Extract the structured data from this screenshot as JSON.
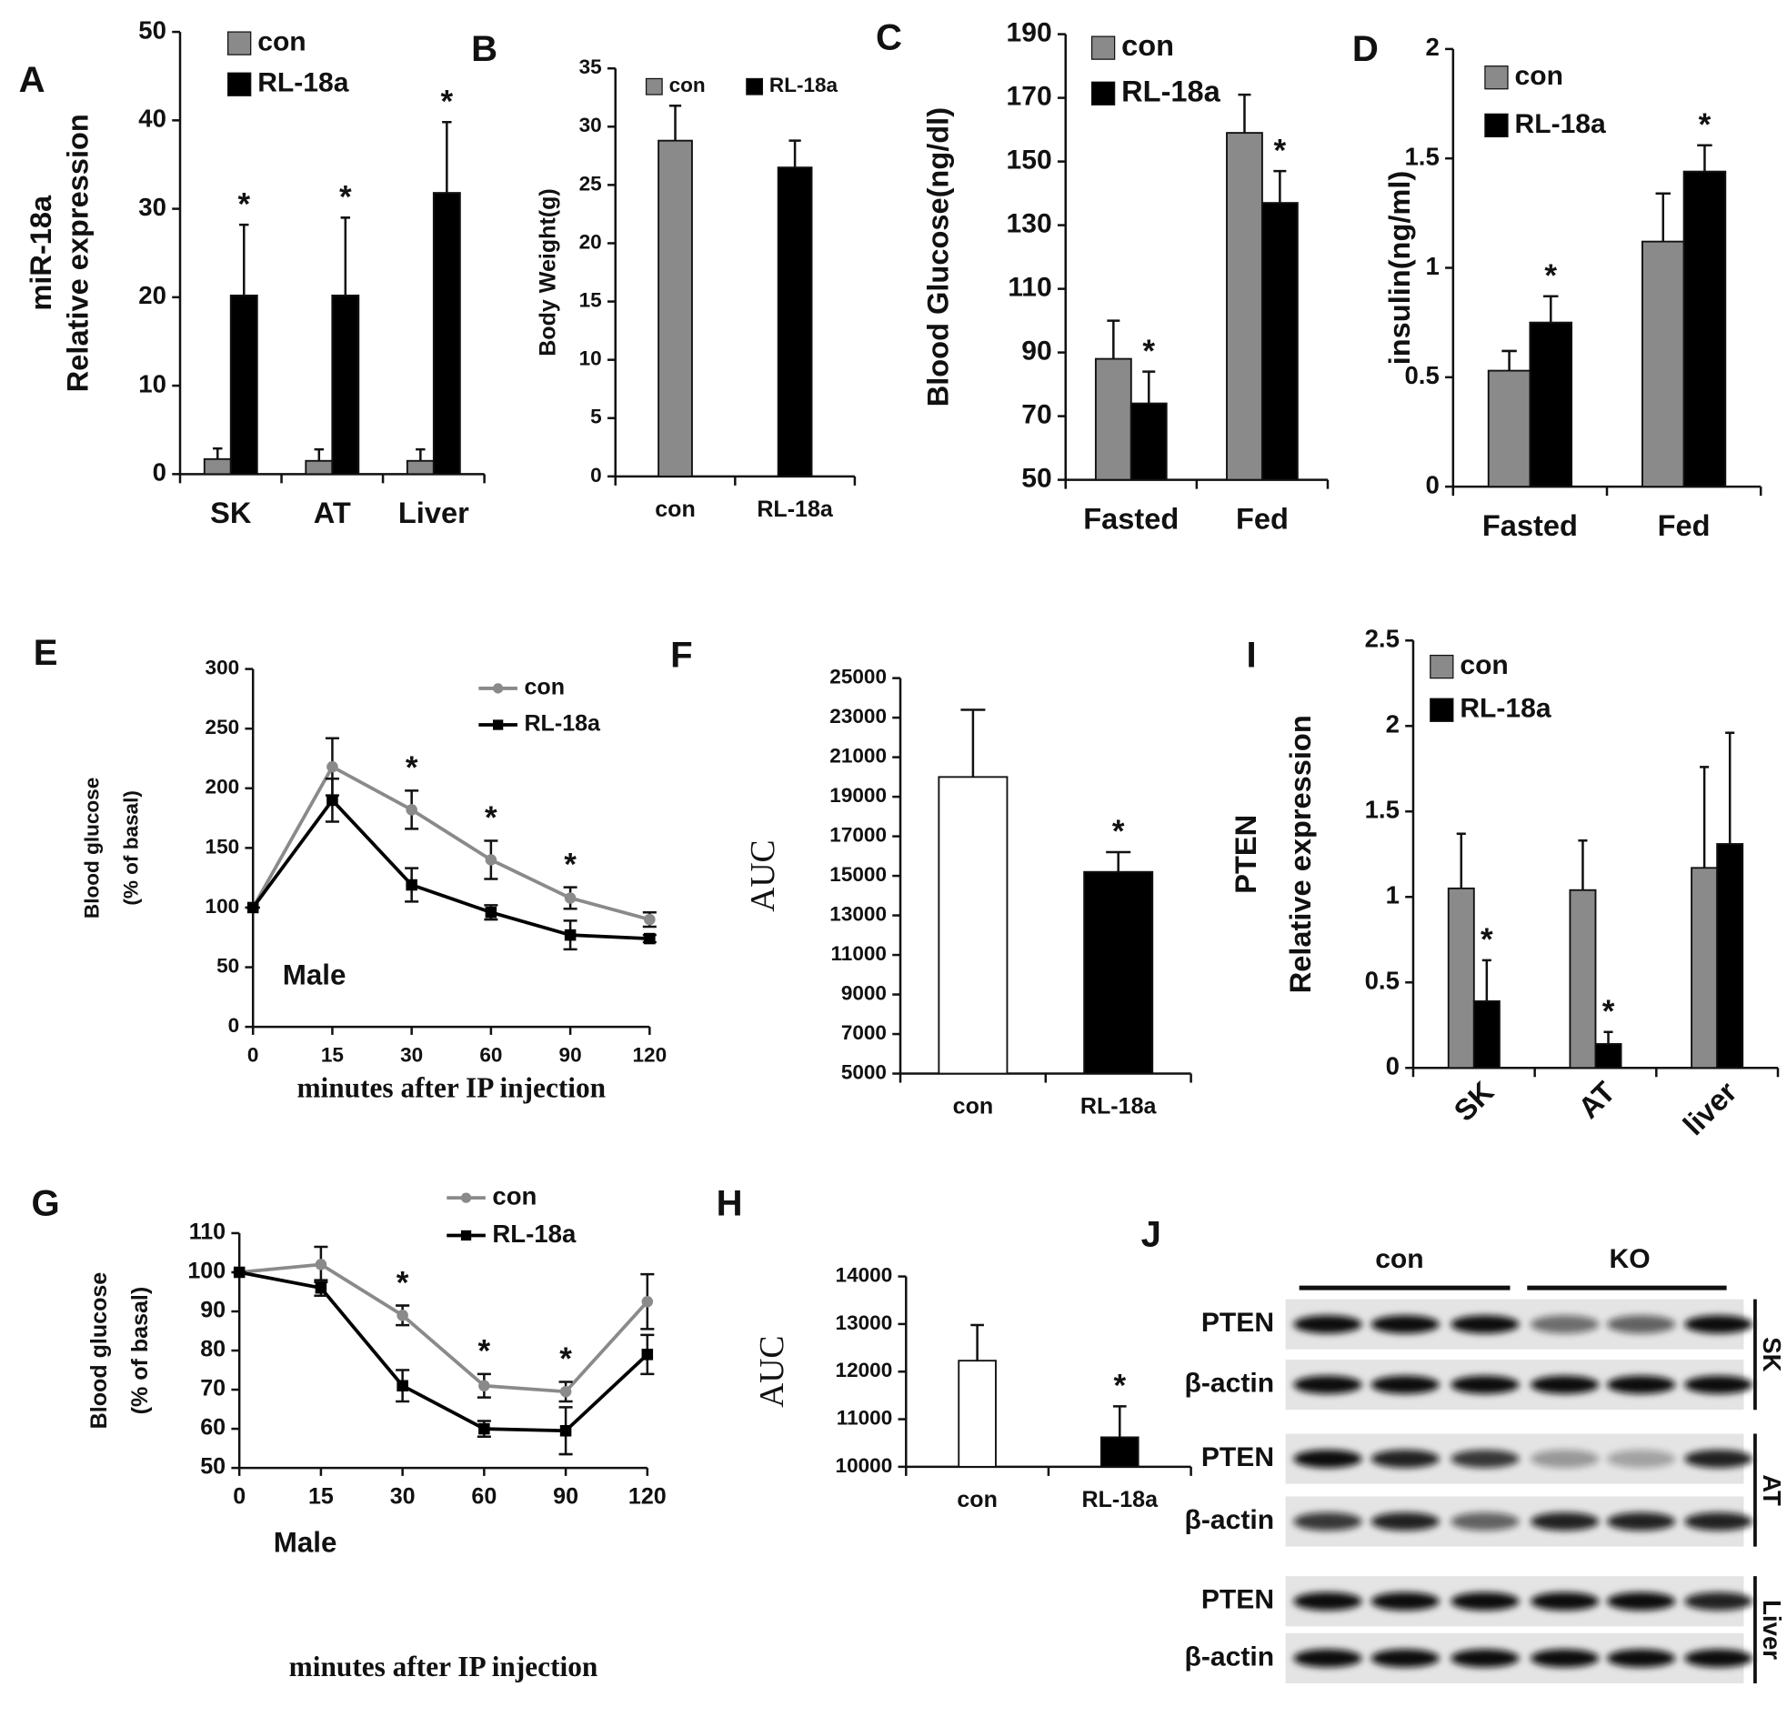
{
  "chart_data": [
    {
      "type": "bar",
      "panel": "A",
      "y_label": [
        "miR-18a",
        "Relative expression"
      ],
      "categories": [
        "SK",
        "AT",
        "Liver"
      ],
      "series": [
        {
          "name": "con",
          "color": "#8a8a8a",
          "values": [
            1.7,
            1.5,
            1.5
          ],
          "errors": [
            1.2,
            1.3,
            1.3
          ],
          "significance": [
            null,
            null,
            null
          ]
        },
        {
          "name": "RL-18a",
          "color": "#000000",
          "values": [
            20.2,
            20.2,
            31.8
          ],
          "errors": [
            8,
            8.8,
            8
          ],
          "significance": [
            "*",
            "*",
            "*"
          ]
        }
      ],
      "ylim": [
        0,
        50
      ],
      "yticks": [
        0,
        10,
        20,
        30,
        40,
        50
      ],
      "legend": "upper left"
    },
    {
      "type": "bar",
      "panel": "B",
      "y_label": [
        "Body Weight(g)"
      ],
      "categories": [
        "con",
        "RL-18a"
      ],
      "series": [
        {
          "name": "con",
          "color": "#8a8a8a",
          "values": [
            28.8,
            null
          ],
          "errors": [
            3,
            null
          ],
          "significance": [
            null,
            null
          ]
        },
        {
          "name": "RL-18a",
          "color": "#000000",
          "values": [
            null,
            26.5
          ],
          "errors": [
            null,
            2.3
          ],
          "significance": [
            null,
            null
          ]
        }
      ],
      "ylim": [
        0,
        35
      ],
      "yticks": [
        0,
        5,
        10,
        15,
        20,
        25,
        30,
        35
      ],
      "legend": "upper center"
    },
    {
      "type": "bar",
      "panel": "C",
      "y_label": [
        "Blood Glucose(ng/dl)"
      ],
      "categories": [
        "Fasted",
        "Fed"
      ],
      "series": [
        {
          "name": "con",
          "color": "#8a8a8a",
          "values": [
            88,
            159
          ],
          "errors": [
            12,
            12
          ],
          "significance": [
            null,
            null
          ]
        },
        {
          "name": "RL-18a",
          "color": "#000000",
          "values": [
            74,
            137
          ],
          "errors": [
            10,
            10
          ],
          "significance": [
            "*",
            "*"
          ]
        }
      ],
      "ylim": [
        50,
        190
      ],
      "yticks": [
        50,
        70,
        90,
        110,
        130,
        150,
        170,
        190
      ],
      "legend": "upper left"
    },
    {
      "type": "bar",
      "panel": "D",
      "y_label": [
        "insulin(ng/ml)"
      ],
      "categories": [
        "Fasted",
        "Fed"
      ],
      "series": [
        {
          "name": "con",
          "color": "#8a8a8a",
          "values": [
            0.53,
            1.12
          ],
          "errors": [
            0.09,
            0.22
          ],
          "significance": [
            null,
            null
          ]
        },
        {
          "name": "RL-18a",
          "color": "#000000",
          "values": [
            0.75,
            1.44
          ],
          "errors": [
            0.12,
            0.12
          ],
          "significance": [
            "*",
            "*"
          ]
        }
      ],
      "ylim": [
        0,
        2
      ],
      "yticks": [
        0,
        0.5,
        1,
        1.5,
        2
      ],
      "legend": "upper left"
    },
    {
      "type": "line",
      "panel": "E",
      "y_label": [
        "Blood glucose",
        "(% of basal)"
      ],
      "x_label": "minutes after IP injection",
      "note": "Male",
      "categories": [
        "0",
        "15",
        "30",
        "60",
        "90",
        "120"
      ],
      "series": [
        {
          "name": "con",
          "color": "#8a8a8a",
          "marker": "circle",
          "values": [
            100,
            218,
            182,
            140,
            108,
            90
          ],
          "errors": [
            0,
            24,
            16,
            16,
            9,
            6
          ],
          "significance": [
            null,
            null,
            "*",
            "*",
            "*",
            null
          ]
        },
        {
          "name": "RL-18a",
          "color": "#000000",
          "marker": "square",
          "values": [
            100,
            190,
            119,
            96,
            77,
            74
          ],
          "errors": [
            0,
            18,
            14,
            6,
            12,
            3
          ],
          "significance": [
            null,
            null,
            null,
            null,
            null,
            null
          ]
        }
      ],
      "ylim": [
        0,
        300
      ],
      "yticks": [
        0,
        50,
        100,
        150,
        200,
        250,
        300
      ],
      "legend": "upper right"
    },
    {
      "type": "bar",
      "panel": "F",
      "y_label": [
        "AUC"
      ],
      "categories": [
        "con",
        "RL-18a"
      ],
      "values": [
        20000,
        15200
      ],
      "errors": [
        3400,
        1000
      ],
      "colors": [
        "#ffffff",
        "#000000"
      ],
      "significance": [
        null,
        "*"
      ],
      "ylim": [
        5000,
        25000
      ],
      "yticks": [
        5000,
        7000,
        9000,
        11000,
        13000,
        15000,
        17000,
        19000,
        21000,
        23000,
        25000
      ]
    },
    {
      "type": "bar",
      "panel": "I",
      "y_label": [
        "PTEN",
        "Relative expression"
      ],
      "categories": [
        "SK",
        "AT",
        "liver"
      ],
      "xtick_rotation": -45,
      "series": [
        {
          "name": "con",
          "color": "#8a8a8a",
          "values": [
            1.05,
            1.04,
            1.17
          ],
          "errors": [
            0.32,
            0.29,
            0.59
          ],
          "significance": [
            null,
            null,
            null
          ]
        },
        {
          "name": "RL-18a",
          "color": "#000000",
          "values": [
            0.39,
            0.14,
            1.31
          ],
          "errors": [
            0.24,
            0.07,
            0.65
          ],
          "significance": [
            "*",
            "*",
            null
          ]
        }
      ],
      "ylim": [
        0,
        2.5
      ],
      "yticks": [
        0,
        0.5,
        1,
        1.5,
        2,
        2.5
      ],
      "legend": "upper left"
    },
    {
      "type": "line",
      "panel": "G",
      "y_label": [
        "Blood glucose",
        "(% of basal)"
      ],
      "x_label": "minutes after IP injection",
      "note": "Male",
      "categories": [
        "0",
        "15",
        "30",
        "60",
        "90",
        "120"
      ],
      "series": [
        {
          "name": "con",
          "color": "#8a8a8a",
          "marker": "circle",
          "values": [
            100,
            102,
            89,
            71,
            69.5,
            92.5
          ],
          "errors": [
            0,
            4.5,
            2.5,
            3,
            2.5,
            7
          ],
          "significance": [
            null,
            null,
            "*",
            "*",
            "*",
            null
          ]
        },
        {
          "name": "RL-18a",
          "color": "#000000",
          "marker": "square",
          "values": [
            100,
            96,
            71,
            60,
            59.5,
            79
          ],
          "errors": [
            0,
            2,
            4,
            2,
            6,
            5
          ],
          "significance": [
            null,
            null,
            null,
            null,
            null,
            null
          ]
        }
      ],
      "ylim": [
        50,
        110
      ],
      "yticks": [
        50,
        60,
        70,
        80,
        90,
        100,
        110
      ],
      "legend": "upper right"
    },
    {
      "type": "bar",
      "panel": "H",
      "y_label": [
        "AUC"
      ],
      "categories": [
        "con",
        "RL-18a"
      ],
      "values": [
        12230,
        10620
      ],
      "errors": [
        750,
        650
      ],
      "colors": [
        "#ffffff",
        "#000000"
      ],
      "significance": [
        null,
        "*"
      ],
      "ylim": [
        10000,
        14000
      ],
      "yticks": [
        10000,
        11000,
        12000,
        13000,
        14000
      ]
    }
  ],
  "blot": {
    "panel": "J",
    "groups": [
      "con",
      "KO"
    ],
    "tissues": [
      {
        "name": "SK",
        "rows": [
          "PTEN",
          "β-actin"
        ]
      },
      {
        "name": "AT",
        "rows": [
          "PTEN",
          "β-actin"
        ]
      },
      {
        "name": "Liver",
        "rows": [
          "PTEN",
          "β-actin"
        ]
      }
    ]
  }
}
